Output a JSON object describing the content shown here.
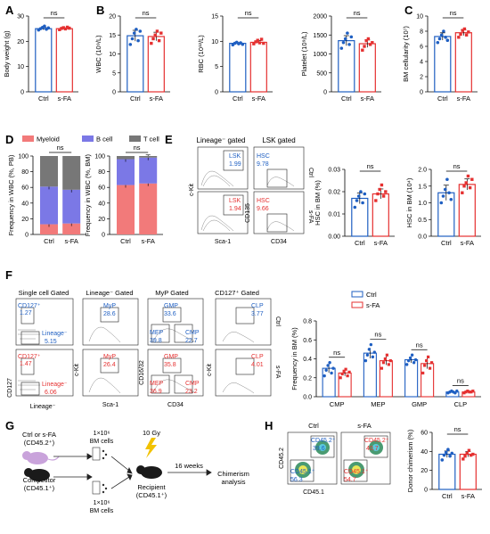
{
  "colors": {
    "ctrl": "#1f5fc2",
    "sfa": "#e53030",
    "myeloid": "#f27a7a",
    "bcell": "#7b78e6",
    "tcell": "#777777",
    "flowRed": "#e53030",
    "flowBlue": "#1f5fc2"
  },
  "panels": {
    "A": "A",
    "B": "B",
    "C": "C",
    "D": "D",
    "E": "E",
    "F": "F",
    "G": "G",
    "H": "H"
  },
  "groups": [
    "Ctrl",
    "s-FA"
  ],
  "ns": "ns",
  "chart_data": [
    {
      "id": "A",
      "type": "bar",
      "categories": [
        "Ctrl",
        "s-FA"
      ],
      "values": [
        25,
        25
      ],
      "ylabel": "Body weight (g)",
      "ylim": [
        0,
        30
      ],
      "yticks": [
        0,
        10,
        20,
        30
      ],
      "points": [
        [
          24.5,
          25,
          25.5,
          26,
          24.8,
          25.3
        ],
        [
          24.6,
          25.1,
          25.4,
          24.9,
          25.6,
          25.2
        ]
      ]
    },
    {
      "id": "B1",
      "type": "bar",
      "categories": [
        "Ctrl",
        "s-FA"
      ],
      "values": [
        14.8,
        14.6
      ],
      "ylabel": "WBC (10⁹/L)",
      "ylim": [
        0,
        20
      ],
      "yticks": [
        0,
        5,
        10,
        15,
        20
      ],
      "points": [
        [
          12.5,
          14,
          15.5,
          16.5,
          13.5,
          16
        ],
        [
          12.8,
          14,
          15,
          16,
          13.5,
          15.5
        ]
      ]
    },
    {
      "id": "B2",
      "type": "bar",
      "categories": [
        "Ctrl",
        "s-FA"
      ],
      "values": [
        9.6,
        9.8
      ],
      "ylabel": "RBC (10¹²/L)",
      "ylim": [
        0,
        15
      ],
      "yticks": [
        0,
        5,
        10,
        15
      ],
      "points": [
        [
          9.3,
          9.6,
          9.8,
          9.5,
          9.7,
          9.4
        ],
        [
          9.5,
          9.9,
          10.2,
          9.7,
          10.4,
          9.6
        ]
      ]
    },
    {
      "id": "B3",
      "type": "bar",
      "categories": [
        "Ctrl",
        "s-FA"
      ],
      "values": [
        1350,
        1270
      ],
      "ylabel": "Platelet (10⁹/L)",
      "ylim": [
        0,
        2000
      ],
      "yticks": [
        0,
        500,
        1000,
        1500,
        2000
      ],
      "points": [
        [
          1150,
          1300,
          1400,
          1550,
          1250,
          1450
        ],
        [
          1100,
          1200,
          1350,
          1400,
          1250,
          1300
        ]
      ]
    },
    {
      "id": "C",
      "type": "bar",
      "categories": [
        "Ctrl",
        "s-FA"
      ],
      "values": [
        7.3,
        7.8
      ],
      "ylabel": "BM cellularity (10⁷)",
      "ylim": [
        0,
        10
      ],
      "yticks": [
        0,
        2,
        4,
        6,
        8,
        10
      ],
      "points": [
        [
          6.5,
          7,
          7.5,
          8,
          7.2,
          6.8
        ],
        [
          7.2,
          7.6,
          8.1,
          8.3,
          7.5,
          7.9
        ]
      ]
    },
    {
      "id": "D1",
      "type": "bar",
      "stacked": true,
      "categories": [
        "Ctrl",
        "s-FA"
      ],
      "ylabel": "Frequency in WBC (%, PB)",
      "ylim": [
        0,
        100
      ],
      "yticks": [
        0,
        20,
        40,
        60,
        80,
        100
      ],
      "series": [
        {
          "name": "Myeloid",
          "values": [
            13,
            14
          ]
        },
        {
          "name": "B cell",
          "values": [
            48,
            43
          ]
        },
        {
          "name": "T cell",
          "values": [
            39,
            43
          ]
        }
      ]
    },
    {
      "id": "D2",
      "type": "bar",
      "stacked": true,
      "categories": [
        "Ctrl",
        "s-FA"
      ],
      "ylabel": "Frequency in WBC (%, BM)",
      "ylim": [
        0,
        100
      ],
      "yticks": [
        0,
        20,
        40,
        60,
        80,
        100
      ],
      "series": [
        {
          "name": "Myeloid",
          "values": [
            63,
            65
          ]
        },
        {
          "name": "B cell",
          "values": [
            33,
            33
          ]
        },
        {
          "name": "T cell",
          "values": [
            4,
            2
          ]
        }
      ]
    },
    {
      "id": "E1",
      "type": "bar",
      "categories": [
        "Ctrl",
        "s-FA"
      ],
      "values": [
        0.017,
        0.019
      ],
      "ylabel": "HSC in BM (%)",
      "ylim": [
        0,
        0.03
      ],
      "yticks": [
        "0.00",
        "0.01",
        "0.02",
        "0.03"
      ],
      "points": [
        [
          0.013,
          0.016,
          0.018,
          0.02,
          0.015,
          0.019
        ],
        [
          0.016,
          0.019,
          0.021,
          0.023,
          0.018,
          0.02
        ]
      ]
    },
    {
      "id": "E2",
      "type": "bar",
      "categories": [
        "Ctrl",
        "s-FA"
      ],
      "values": [
        1.3,
        1.55
      ],
      "ylabel": "HSC in BM (10⁴)",
      "ylim": [
        0,
        2.0
      ],
      "yticks": [
        "0.0",
        "0.5",
        "1.0",
        "1.5",
        "2.0"
      ],
      "points": [
        [
          1.0,
          1.2,
          1.4,
          1.7,
          1.3,
          1.1
        ],
        [
          1.3,
          1.5,
          1.6,
          1.8,
          1.45,
          1.7
        ]
      ]
    },
    {
      "id": "F",
      "type": "bar",
      "categories": [
        "CMP",
        "MEP",
        "GMP",
        "CLP"
      ],
      "ylabel": "Frequency in BM (%)",
      "ylim": [
        0,
        0.8
      ],
      "yticks": [
        "0.0",
        "0.2",
        "0.4",
        "0.6",
        "0.8"
      ],
      "legend": [
        "Ctrl",
        "s-FA"
      ],
      "series": [
        {
          "name": "Ctrl",
          "values": [
            0.3,
            0.46,
            0.39,
            0.05
          ],
          "points": [
            [
              0.22,
              0.28,
              0.33,
              0.36,
              0.25,
              0.3
            ],
            [
              0.38,
              0.44,
              0.5,
              0.55,
              0.42,
              0.47
            ],
            [
              0.34,
              0.38,
              0.41,
              0.44,
              0.36,
              0.39
            ],
            [
              0.04,
              0.05,
              0.06,
              0.05,
              0.04,
              0.06
            ]
          ]
        },
        {
          "name": "s-FA",
          "values": [
            0.25,
            0.38,
            0.35,
            0.05
          ],
          "points": [
            [
              0.2,
              0.24,
              0.27,
              0.29,
              0.22,
              0.26
            ],
            [
              0.3,
              0.36,
              0.4,
              0.44,
              0.34,
              0.38
            ],
            [
              0.25,
              0.33,
              0.38,
              0.42,
              0.3,
              0.36
            ],
            [
              0.04,
              0.05,
              0.06,
              0.05,
              0.05,
              0.06
            ]
          ]
        }
      ]
    },
    {
      "id": "H",
      "type": "bar",
      "categories": [
        "Ctrl",
        "s-FA"
      ],
      "values": [
        37,
        37
      ],
      "ylabel": "Donor chimerism (%)",
      "ylim": [
        0,
        60
      ],
      "yticks": [
        0,
        20,
        40,
        60
      ],
      "points": [
        [
          31,
          36,
          39,
          42,
          35,
          38
        ],
        [
          32,
          35,
          38,
          41,
          36,
          37
        ]
      ]
    }
  ],
  "legendD": [
    "Myeloid",
    "B cell",
    "T cell"
  ],
  "flowE": {
    "title1": "Lineage⁻ gated",
    "title2": "LSK gated",
    "xlabel1": "Sca-1",
    "ylabel1": "c-Kit",
    "xlabel2": "CD34",
    "ylabel2": "CD135",
    "row1": {
      "gate1": "LSK",
      "val1": "1.99",
      "gate2": "HSC",
      "val2": "9.78",
      "side": "Ctrl"
    },
    "row2": {
      "gate1": "LSK",
      "val1": "1.94",
      "gate2": "HSC",
      "val2": "9.66",
      "side": "s-FA"
    }
  },
  "flowF": {
    "titles": [
      "Single cell Gated",
      "Lineage⁻ Gated",
      "MyP Gated",
      "CD127⁺ Gated"
    ],
    "xlabels": [
      "Lineage⁻",
      "Sca-1",
      "CD34",
      ""
    ],
    "ylabels": [
      "CD127",
      "c-Kit",
      "CD16/32",
      "c-Kit"
    ],
    "sides": [
      "Ctrl",
      "s-FA"
    ],
    "row1": {
      "cd127": "CD127⁺",
      "cd127v": "1.27",
      "lin": "Lineage⁻",
      "linv": "5.15",
      "myp": "MyP",
      "mypv": "28.6",
      "gmp": "GMP",
      "gmpv": "33.6",
      "mep": "MEP",
      "mepv": "39.8",
      "cmp": "CMP",
      "cmpv": "22.7",
      "clp": "CLP",
      "clpv": "3.77"
    },
    "row2": {
      "cd127": "CD127⁺",
      "cd127v": "1.47",
      "lin": "Lineage⁻",
      "linv": "6.06",
      "myp": "MyP",
      "mypv": "26.4",
      "gmp": "GMP",
      "gmpv": "35.8",
      "mep": "MEP",
      "mepv": "36.9",
      "cmp": "CMP",
      "cmpv": "23.2",
      "clp": "CLP",
      "clpv": "4.01"
    }
  },
  "schematicG": {
    "donor": "Ctrl or s-FA",
    "donorSub": "(CD45.2⁺)",
    "bm1": "1×10⁶",
    "bm1b": "BM cells",
    "comp": "Competitor",
    "compSub": "(CD45.1⁺)",
    "bm2": "1×10⁶",
    "bm2b": "BM cells",
    "dose": "10 Gy",
    "time": "16 weeks",
    "recip": "Recipient",
    "recipSub": "(CD45.1⁺)",
    "out1": "Chimerism",
    "out2": "analysis"
  },
  "flowH": {
    "ctrl": "Ctrl",
    "sfa": "s-FA",
    "xlabel": "CD45.1",
    "ylabel": "CD45.2",
    "g2": "CD45.2⁺",
    "g1": "CD45.1⁺",
    "c2": "39.6",
    "c1": "56.3",
    "s2": "40.7",
    "s1": "54.7"
  }
}
